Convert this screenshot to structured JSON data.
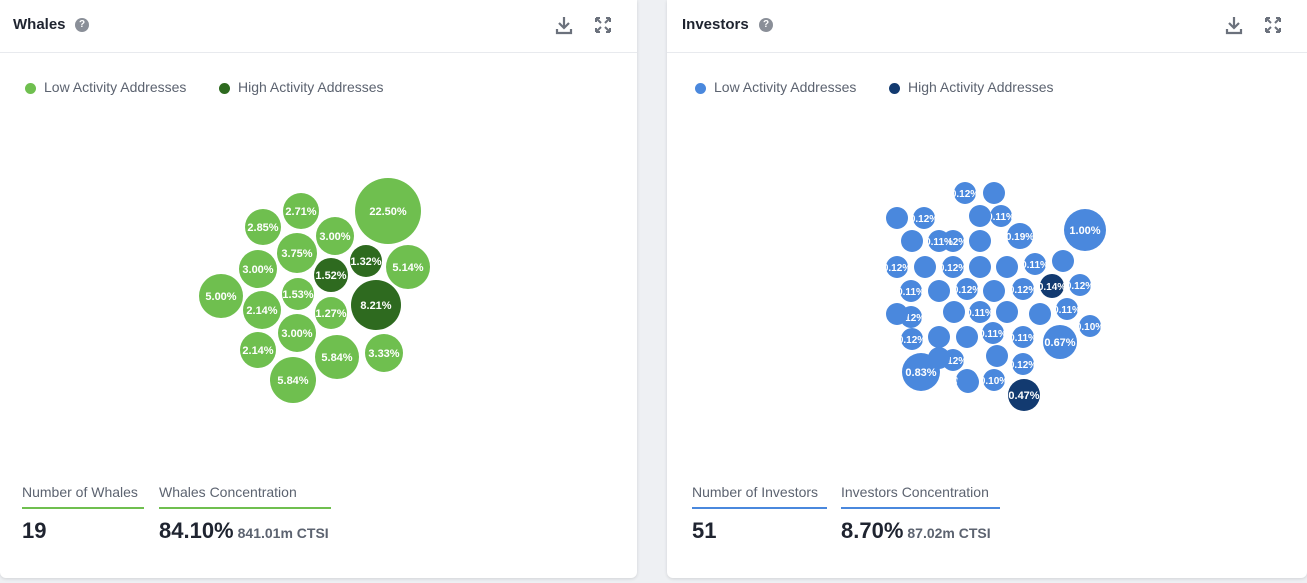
{
  "panels": {
    "whales": {
      "title": "Whales",
      "legend": {
        "low_label": "Low Activity Addresses",
        "high_label": "High Activity Addresses",
        "low_color": "#6fbf4f",
        "high_color": "#2e6a1f"
      },
      "stats": {
        "count_label": "Number of Whales",
        "count_value": "19",
        "conc_label": "Whales Concentration",
        "conc_value": "84.10%",
        "conc_sub": "841.01m CTSI"
      },
      "accent": "#6fbf4f"
    },
    "investors": {
      "title": "Investors",
      "legend": {
        "low_label": "Low Activity Addresses",
        "high_label": "High Activity Addresses",
        "low_color": "#4a88dd",
        "high_color": "#123a70"
      },
      "stats": {
        "count_label": "Number of Investors",
        "count_value": "51",
        "conc_label": "Investors Concentration",
        "conc_value": "8.70%",
        "conc_sub": "87.02m CTSI"
      },
      "accent": "#4a88dd"
    }
  },
  "chart_data": [
    {
      "type": "bubble",
      "legend_placement": "top-left",
      "series": [
        {
          "name": "Low Activity Addresses",
          "values": [
            22.5,
            5.84,
            5.84,
            5.14,
            5.0,
            3.33,
            3.0,
            3.0,
            3.0,
            2.85,
            2.71,
            2.14,
            2.14,
            1.53,
            1.27,
            3.75
          ]
        },
        {
          "name": "High Activity Addresses",
          "values": [
            8.21,
            1.52,
            1.32
          ]
        }
      ],
      "labels_low": [
        "22.50%",
        "5.84%",
        "5.84%",
        "5.14%",
        "5.00%",
        "3.33%",
        "3.00%",
        "3.00%",
        "3.00%",
        "2.85%",
        "2.71%",
        "2.14%",
        "2.14%",
        "1.53%",
        "1.27%",
        "3.75%"
      ],
      "labels_high": [
        "8.21%",
        "1.52%",
        "1.32%"
      ]
    },
    {
      "type": "bubble",
      "legend_placement": "top-left",
      "series": [
        {
          "name": "Low Activity Addresses",
          "values": [
            1.0,
            0.83,
            0.67,
            0.19,
            0.12,
            0.12,
            0.12,
            0.12,
            0.12,
            0.12,
            0.12,
            0.12,
            0.12,
            0.12,
            0.12,
            0.12,
            0.12,
            0.11,
            0.11,
            0.11,
            0.11,
            0.11,
            0.11,
            0.11,
            0.11,
            0.1,
            0.1,
            0.1,
            0.1
          ]
        },
        {
          "name": "High Activity Addresses",
          "values": [
            0.47,
            0.14
          ]
        }
      ],
      "labels_low": [
        "1.00%",
        "0.83%",
        "0.67%",
        "0.19%",
        "0.12%",
        "0.12%",
        "0.12%",
        "0.12%",
        "0.12%",
        "0.12%",
        "0.12%",
        "0.12%",
        "0.12%",
        "0.12%",
        "0.12%",
        "0.12%",
        "0.12%",
        "0.11%",
        "0.11%",
        "0.11%",
        "0.11%",
        "0.11%",
        "0.11%",
        "0.11%",
        "0.11%",
        "0.10%",
        "0.10%",
        "0.10%",
        "0.10%"
      ],
      "labels_high": [
        "0.47%",
        "0.14%"
      ],
      "unlabeled_bubbles": 20
    }
  ]
}
